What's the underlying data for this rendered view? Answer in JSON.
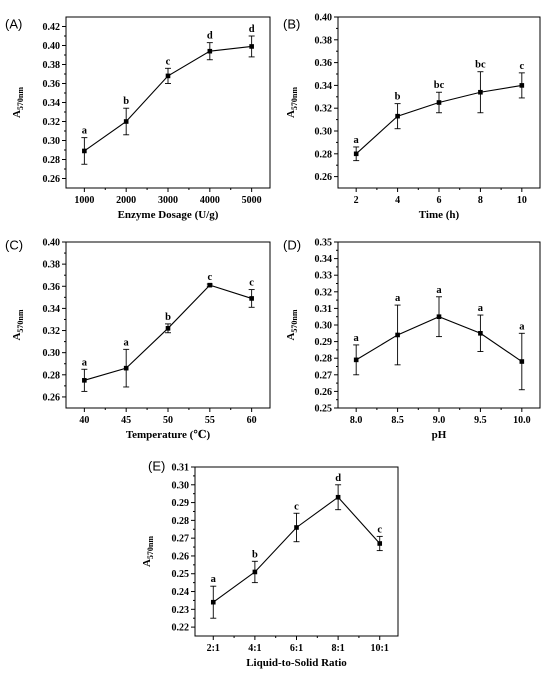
{
  "chart_data": [
    {
      "type": "line",
      "panel_label": "(A)",
      "xlabel": "Enzyme Dosage (U/g)",
      "ylabel_main": "A",
      "ylabel_sub": "570nm",
      "categories": [
        "1000",
        "2000",
        "3000",
        "4000",
        "5000"
      ],
      "values": [
        0.289,
        0.32,
        0.368,
        0.394,
        0.399
      ],
      "errors": [
        0.014,
        0.014,
        0.008,
        0.009,
        0.011
      ],
      "sig_labels": [
        "a",
        "b",
        "c",
        "d",
        "d"
      ],
      "ylim": [
        0.25,
        0.43
      ],
      "yticks": [
        "0.26",
        "0.28",
        "0.30",
        "0.32",
        "0.34",
        "0.36",
        "0.38",
        "0.40",
        "0.42"
      ]
    },
    {
      "type": "line",
      "panel_label": "(B)",
      "xlabel": "Time (h)",
      "ylabel_main": "A",
      "ylabel_sub": "570nm",
      "categories": [
        "2",
        "4",
        "6",
        "8",
        "10"
      ],
      "values": [
        0.28,
        0.313,
        0.325,
        0.334,
        0.34
      ],
      "errors": [
        0.006,
        0.011,
        0.009,
        0.018,
        0.011
      ],
      "sig_labels": [
        "a",
        "b",
        "bc",
        "bc",
        "c"
      ],
      "ylim": [
        0.25,
        0.4
      ],
      "yticks": [
        "0.26",
        "0.28",
        "0.30",
        "0.32",
        "0.34",
        "0.36",
        "0.38",
        "0.40"
      ]
    },
    {
      "type": "line",
      "panel_label": "(C)",
      "xlabel": "Temperature (℃)",
      "ylabel_main": "A",
      "ylabel_sub": "570nm",
      "categories": [
        "40",
        "45",
        "50",
        "55",
        "60"
      ],
      "values": [
        0.275,
        0.286,
        0.322,
        0.361,
        0.349
      ],
      "errors": [
        0.01,
        0.017,
        0.004,
        0.001,
        0.008
      ],
      "sig_labels": [
        "a",
        "a",
        "b",
        "c",
        "c"
      ],
      "ylim": [
        0.25,
        0.4
      ],
      "yticks": [
        "0.26",
        "0.28",
        "0.30",
        "0.32",
        "0.34",
        "0.36",
        "0.38",
        "0.40"
      ]
    },
    {
      "type": "line",
      "panel_label": "(D)",
      "xlabel": "pH",
      "ylabel_main": "A",
      "ylabel_sub": "570nm",
      "categories": [
        "8.0",
        "8.5",
        "9.0",
        "9.5",
        "10.0"
      ],
      "values": [
        0.279,
        0.294,
        0.305,
        0.295,
        0.278
      ],
      "errors": [
        0.009,
        0.018,
        0.012,
        0.011,
        0.017
      ],
      "sig_labels": [
        "a",
        "a",
        "a",
        "a",
        "a"
      ],
      "ylim": [
        0.25,
        0.35
      ],
      "yticks": [
        "0.25",
        "0.26",
        "0.27",
        "0.28",
        "0.29",
        "0.30",
        "0.31",
        "0.32",
        "0.33",
        "0.34",
        "0.35"
      ]
    },
    {
      "type": "line",
      "panel_label": "(E)",
      "xlabel": "Liquid-to-Solid Ratio",
      "ylabel_main": "A",
      "ylabel_sub": "570nm",
      "categories": [
        "2:1",
        "4:1",
        "6:1",
        "8:1",
        "10:1"
      ],
      "values": [
        0.234,
        0.251,
        0.276,
        0.293,
        0.267
      ],
      "errors": [
        0.009,
        0.006,
        0.008,
        0.007,
        0.004
      ],
      "sig_labels": [
        "a",
        "b",
        "c",
        "d",
        "c"
      ],
      "ylim": [
        0.215,
        0.31
      ],
      "yticks": [
        "0.22",
        "0.23",
        "0.24",
        "0.25",
        "0.26",
        "0.27",
        "0.28",
        "0.29",
        "0.30",
        "0.31"
      ]
    }
  ]
}
